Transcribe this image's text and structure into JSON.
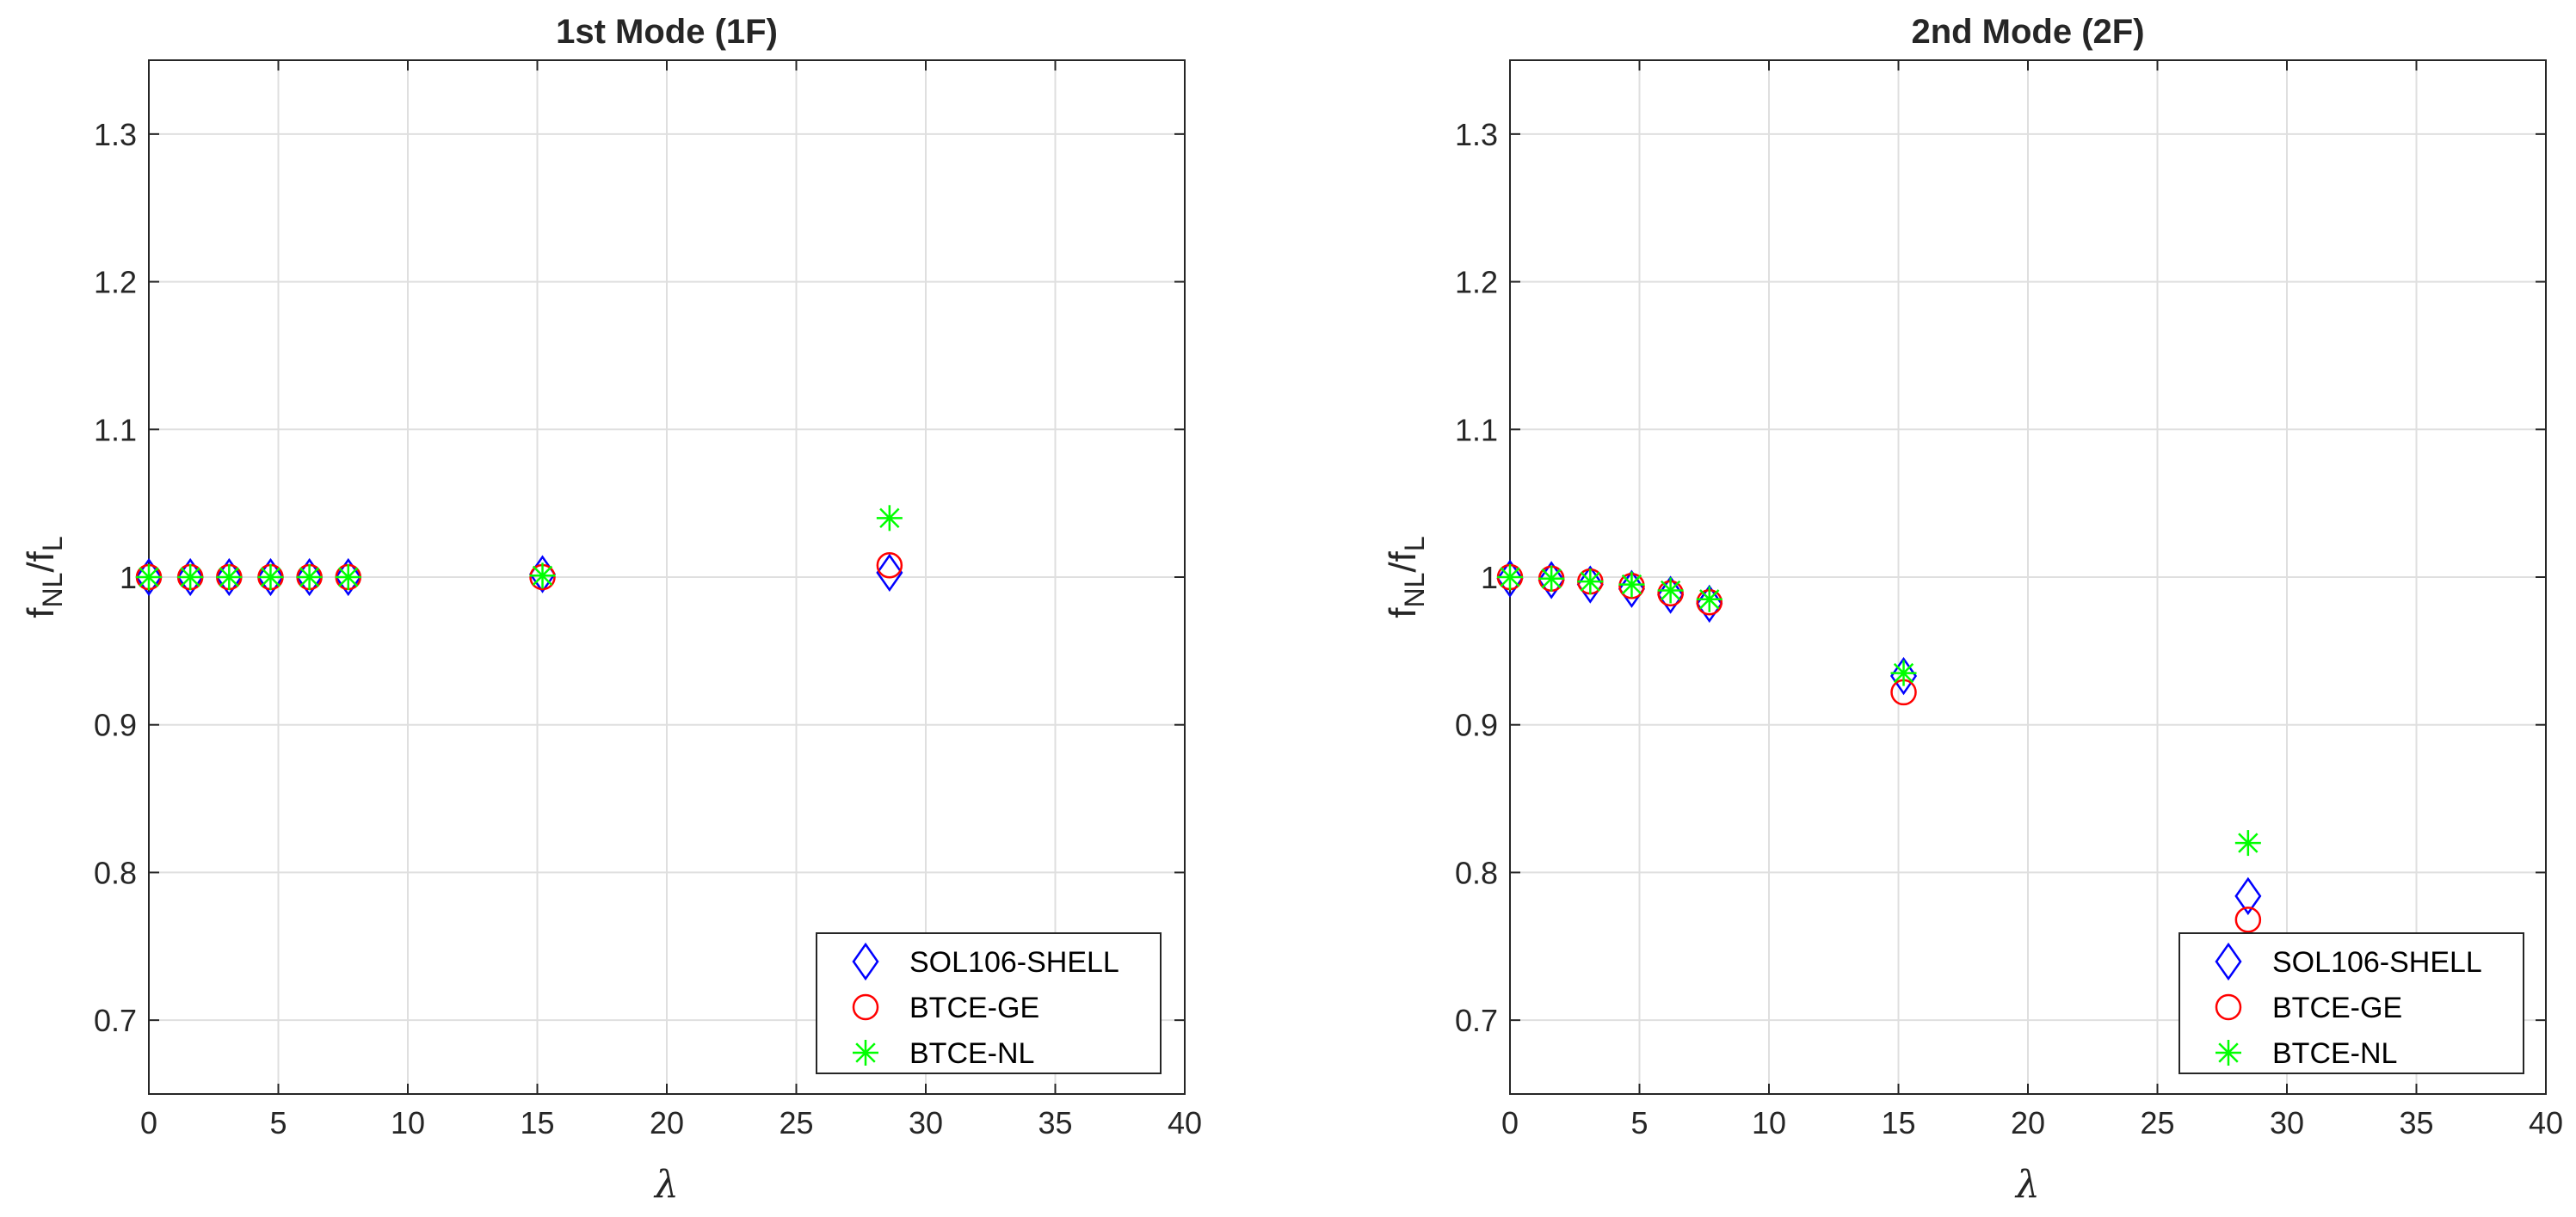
{
  "chart_data": [
    {
      "type": "scatter",
      "title": "1st Mode (1F)",
      "xlabel": "λ",
      "ylabel": {
        "base_a": "f",
        "sub_a": "NL",
        "slash": "/",
        "base_b": "f",
        "sub_b": "L"
      },
      "xlim": [
        0,
        40
      ],
      "ylim": [
        0.65,
        1.35
      ],
      "xticks": [
        0,
        5,
        10,
        15,
        20,
        25,
        30,
        35,
        40
      ],
      "yticks": [
        0.7,
        0.8,
        0.9,
        1,
        1.1,
        1.2,
        1.3
      ],
      "ytick_labels": [
        "0.7",
        "0.8",
        "0.9",
        "1",
        "1.1",
        "1.2",
        "1.3"
      ],
      "grid": true,
      "legend_position": "bottom-right",
      "series": [
        {
          "name": "SOL106-SHELL",
          "marker": "diamond",
          "color": "#0000ff",
          "x": [
            0,
            1.6,
            3.1,
            4.7,
            6.2,
            7.7,
            15.2,
            28.6
          ],
          "y": [
            1.0,
            1.0,
            1.0,
            1.0,
            1.0,
            1.0,
            1.002,
            1.003
          ]
        },
        {
          "name": "BTCE-GE",
          "marker": "circle",
          "color": "#ff0000",
          "x": [
            0,
            1.6,
            3.1,
            4.7,
            6.2,
            7.7,
            15.2,
            28.6
          ],
          "y": [
            1.0,
            1.0,
            1.0,
            1.0,
            1.0,
            1.0,
            1.0,
            1.008
          ]
        },
        {
          "name": "BTCE-NL",
          "marker": "asterisk",
          "color": "#00ff00",
          "x": [
            0,
            1.6,
            3.1,
            4.7,
            6.2,
            7.7,
            15.2,
            28.6
          ],
          "y": [
            1.0,
            1.0,
            1.0,
            1.0,
            1.0,
            1.0,
            1.001,
            1.04
          ]
        }
      ]
    },
    {
      "type": "scatter",
      "title": "2nd Mode (2F)",
      "xlabel": "λ",
      "ylabel": {
        "base_a": "f",
        "sub_a": "NL",
        "slash": "/",
        "base_b": "f",
        "sub_b": "L"
      },
      "xlim": [
        0,
        40
      ],
      "ylim": [
        0.65,
        1.35
      ],
      "xticks": [
        0,
        5,
        10,
        15,
        20,
        25,
        30,
        35,
        40
      ],
      "yticks": [
        0.7,
        0.8,
        0.9,
        1,
        1.1,
        1.2,
        1.3
      ],
      "ytick_labels": [
        "0.7",
        "0.8",
        "0.9",
        "1",
        "1.1",
        "1.2",
        "1.3"
      ],
      "grid": true,
      "legend_position": "bottom-right",
      "series": [
        {
          "name": "SOL106-SHELL",
          "marker": "diamond",
          "color": "#0000ff",
          "x": [
            0,
            1.6,
            3.1,
            4.7,
            6.2,
            7.7,
            15.2,
            28.5
          ],
          "y": [
            0.999,
            0.998,
            0.995,
            0.992,
            0.988,
            0.982,
            0.933,
            0.784
          ]
        },
        {
          "name": "BTCE-GE",
          "marker": "circle",
          "color": "#ff0000",
          "x": [
            0,
            1.6,
            3.1,
            4.7,
            6.2,
            7.7,
            15.2,
            28.5
          ],
          "y": [
            1.0,
            0.999,
            0.997,
            0.994,
            0.989,
            0.983,
            0.922,
            0.768
          ]
        },
        {
          "name": "BTCE-NL",
          "marker": "asterisk",
          "color": "#00ff00",
          "x": [
            0,
            1.6,
            3.1,
            4.7,
            6.2,
            7.7,
            15.2,
            28.5
          ],
          "y": [
            1.0,
            0.999,
            0.997,
            0.995,
            0.991,
            0.985,
            0.935,
            0.82
          ]
        }
      ]
    }
  ]
}
